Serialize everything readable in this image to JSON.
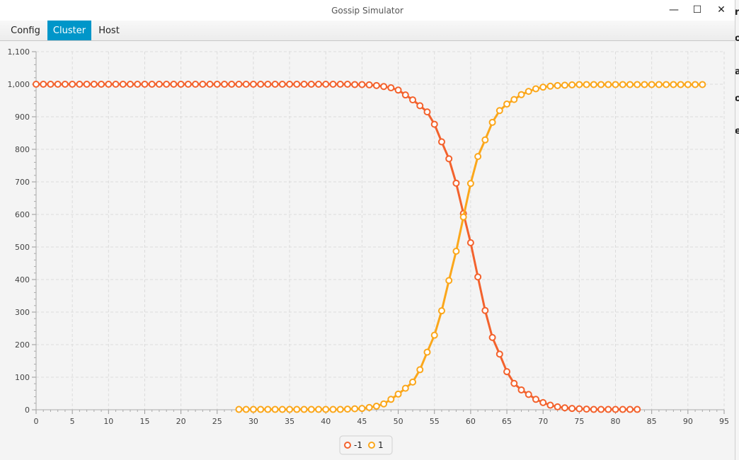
{
  "window": {
    "title": "Gossip Simulator",
    "controls": {
      "minimize": "—",
      "maximize": "☐",
      "close": "✕"
    }
  },
  "menu": {
    "tabs": [
      {
        "label": "Config",
        "active": false
      },
      {
        "label": "Cluster",
        "active": true
      },
      {
        "label": "Host",
        "active": false
      }
    ]
  },
  "background_window_letters": [
    "r",
    "o",
    "a",
    "o",
    "e"
  ],
  "chart_data": {
    "type": "line",
    "x_ticks": [
      0,
      5,
      10,
      15,
      20,
      25,
      30,
      35,
      40,
      45,
      50,
      55,
      60,
      65,
      70,
      75,
      80,
      85,
      90,
      95
    ],
    "y_tick_labels": [
      "0",
      "100",
      "200",
      "300",
      "400",
      "500",
      "600",
      "700",
      "800",
      "900",
      "1,000",
      "1,100"
    ],
    "xlim": [
      0,
      95
    ],
    "ylim": [
      0,
      1100
    ],
    "grid": true,
    "legend_position": "bottom-center",
    "colors": {
      "series_minus1": "#f3622d",
      "series_1": "#fba71b"
    },
    "series": [
      {
        "name": "-1",
        "x_start": 0,
        "values": [
          1000,
          1000,
          1000,
          1000,
          1000,
          1000,
          1000,
          1000,
          1000,
          1000,
          1000,
          1000,
          1000,
          1000,
          1000,
          1000,
          1000,
          1000,
          1000,
          1000,
          1000,
          1000,
          1000,
          1000,
          1000,
          1000,
          1000,
          1000,
          1000,
          1000,
          1000,
          1000,
          1000,
          1000,
          1000,
          1000,
          1000,
          1000,
          1000,
          1000,
          1000,
          1000,
          1000,
          1000,
          999,
          999,
          998,
          996,
          993,
          989,
          982,
          967,
          952,
          934,
          915,
          877,
          823,
          771,
          696,
          603,
          513,
          408,
          305,
          222,
          171,
          117,
          81,
          61,
          47,
          32,
          22,
          14,
          9,
          6,
          4,
          3,
          2,
          1,
          1,
          1,
          1,
          1,
          1,
          1
        ]
      },
      {
        "name": "1",
        "x_start": 28,
        "values": [
          1,
          1,
          1,
          1,
          1,
          1,
          1,
          1,
          1,
          1,
          1,
          1,
          1,
          1,
          1,
          2,
          3,
          4,
          7,
          11,
          18,
          32,
          48,
          66,
          85,
          123,
          177,
          229,
          304,
          397,
          487,
          592,
          695,
          778,
          829,
          883,
          919,
          939,
          953,
          968,
          978,
          986,
          991,
          994,
          996,
          997,
          998,
          999,
          999,
          999,
          999,
          999,
          999,
          999,
          999,
          999,
          999,
          999,
          999,
          999,
          999,
          999,
          999,
          999,
          999
        ]
      }
    ]
  }
}
